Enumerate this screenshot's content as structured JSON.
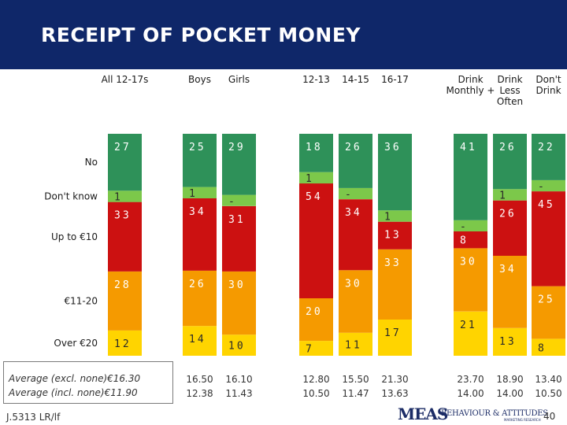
{
  "title": "RECEIPT OF POCKET MONEY",
  "chart_data": {
    "type": "bar",
    "stacked": true,
    "percent": true,
    "columns": [
      {
        "label": "All 12-17s",
        "segments": [
          "12",
          "28",
          "33",
          "1",
          "27"
        ]
      },
      {
        "label": "Boys",
        "segments": [
          "14",
          "26",
          "34",
          "1",
          "25"
        ]
      },
      {
        "label": "Girls",
        "segments": [
          "10",
          "30",
          "31",
          "-",
          "29"
        ]
      },
      {
        "label": "12-13",
        "segments": [
          "7",
          "20",
          "54",
          "1",
          "18"
        ]
      },
      {
        "label": "14-15",
        "segments": [
          "11",
          "30",
          "34",
          "-",
          "26"
        ]
      },
      {
        "label": "16-17",
        "segments": [
          "17",
          "33",
          "13",
          "1",
          "36"
        ]
      },
      {
        "label": "Drink Monthly +",
        "segments": [
          "21",
          "30",
          "8",
          "-",
          "41"
        ]
      },
      {
        "label": "Drink Less Often",
        "segments": [
          "13",
          "34",
          "26",
          "1",
          "26"
        ]
      },
      {
        "label": "Don't Drink",
        "segments": [
          "8",
          "25",
          "45",
          "-",
          "22"
        ]
      }
    ],
    "column_headers": [
      {
        "lines": [
          "All 12-17s"
        ]
      },
      {
        "lines": [
          "Boys"
        ]
      },
      {
        "lines": [
          "Girls"
        ]
      },
      {
        "lines": [
          "12-13"
        ]
      },
      {
        "lines": [
          "14-15"
        ]
      },
      {
        "lines": [
          "16-17"
        ]
      },
      {
        "lines": [
          "Drink",
          "Monthly +"
        ]
      },
      {
        "lines": [
          "Drink",
          "Less",
          "Often"
        ]
      },
      {
        "lines": [
          "Don't",
          "Drink"
        ]
      }
    ],
    "categories": [
      "Over €20",
      "€11-20",
      "Up to €10",
      "Don't know",
      "No"
    ],
    "colors": [
      "#ffd400",
      "#f59a00",
      "#cc1111",
      "#7cc84a",
      "#2e9159"
    ],
    "averages": {
      "excl_label": "Average (excl. none)€16.30",
      "incl_label": "Average (incl. none)€11.90",
      "excl": [
        "16.50",
        "16.10",
        "12.80",
        "15.50",
        "21.30",
        "23.70",
        "18.90",
        "13.40"
      ],
      "incl": [
        "12.38",
        "11.43",
        "10.50",
        "11.47",
        "13.63",
        "14.00",
        "14.00",
        "10.50"
      ]
    }
  },
  "footer": {
    "ref": "J.5313 LR/lf",
    "page": "40",
    "logo_meas": "MEAS",
    "logo_ba": "BEHAVIOUR & ATTITUDES",
    "logo_ba_sub": "MARKETING RESEARCH"
  }
}
